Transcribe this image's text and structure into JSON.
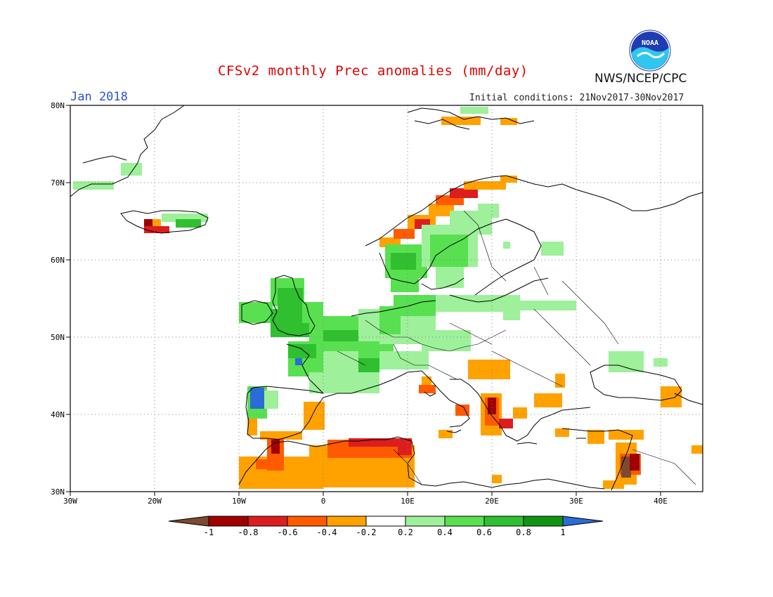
{
  "header": {
    "title": "CFSv2 monthly Prec anomalies (mm/day)",
    "month": "Jan 2018",
    "initial_conditions": "Initial conditions: 21Nov2017-30Nov2017",
    "agency": "NWS/NCEP/CPC",
    "logo_text": "NOAA",
    "logo_icon": "noaa-logo-icon"
  },
  "map": {
    "lat_labels": [
      "80N",
      "70N",
      "60N",
      "50N",
      "40N",
      "30N"
    ],
    "lon_labels": [
      "30W",
      "20W",
      "10W",
      "0",
      "10E",
      "20E",
      "30E",
      "40E"
    ],
    "grid": true,
    "grid_style": "dotted",
    "coastline_color": "#000000"
  },
  "colorbar": {
    "ticks": [
      "-1",
      "-0.8",
      "-0.6",
      "-0.4",
      "-0.2",
      "0.2",
      "0.4",
      "0.6",
      "0.8",
      "1"
    ],
    "colors": [
      "#7b4a2f",
      "#a00000",
      "#dd1e1e",
      "#ff5a00",
      "#ffa200",
      "#ffffff",
      "#9ef09a",
      "#58e050",
      "#2fbf2f",
      "#119411",
      "#2b6cd6"
    ]
  },
  "anomaly_colors": {
    "neg_0_2_0_4": "#ffa200",
    "neg_0_4_0_6": "#ff5a00",
    "neg_0_6_0_8": "#dd1e1e",
    "neg_0_8_1": "#a00000",
    "below_neg_1": "#7b4a2f",
    "pos_0_2_0_4": "#9ef09a",
    "pos_0_4_0_6": "#58e050",
    "pos_0_6_0_8": "#2fbf2f",
    "pos_0_8_1": "#119411",
    "above_1": "#2b6cd6"
  }
}
